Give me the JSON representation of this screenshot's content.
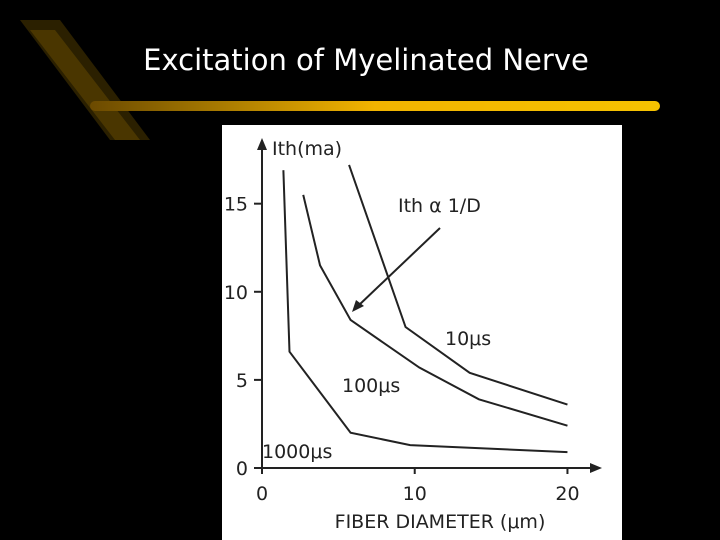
{
  "title": "Excitation of Myelinated Nerve",
  "chart_data": {
    "type": "line",
    "y_label": "Ith(ma)",
    "x_label": "FIBER DIAMETER (μm)",
    "annotation": "Ith α 1/D",
    "xlim": [
      0,
      22
    ],
    "ylim": [
      0,
      18.5
    ],
    "xticks": [
      0,
      10,
      20
    ],
    "yticks": [
      0,
      5,
      10,
      15
    ],
    "series": [
      {
        "name": "10μs",
        "color": "#222222",
        "x": [
          5.7,
          9.4,
          13.6,
          20
        ],
        "values": [
          17.2,
          8.0,
          5.4,
          3.6
        ]
      },
      {
        "name": "100μs",
        "color": "#222222",
        "x": [
          2.7,
          3.8,
          5.8,
          10.3,
          14.2,
          20
        ],
        "values": [
          15.5,
          11.5,
          8.4,
          5.7,
          3.9,
          2.4
        ]
      },
      {
        "name": "1000μs",
        "color": "#222222",
        "x": [
          1.4,
          1.8,
          5.8,
          9.7,
          20
        ],
        "values": [
          16.9,
          6.6,
          2.0,
          1.3,
          0.9
        ]
      }
    ]
  }
}
